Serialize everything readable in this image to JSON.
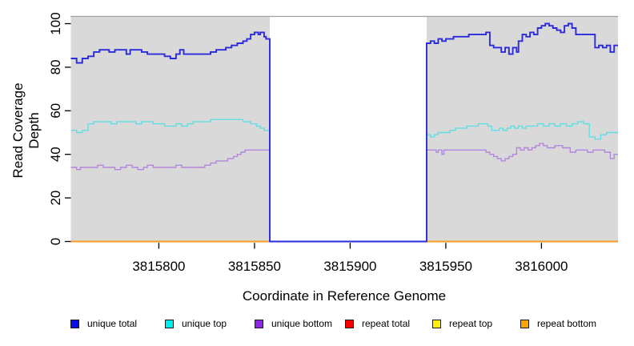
{
  "figure": {
    "x_axis_title": "Coordinate in Reference Genome",
    "y_axis_title": "Read Coverage Depth"
  },
  "chart_data": {
    "type": "line",
    "style": "step-after",
    "title": "",
    "xlabel": "Coordinate in Reference Genome",
    "ylabel": "Read Coverage Depth",
    "xlim": [
      3815754,
      3816040
    ],
    "ylim": [
      0,
      103.5
    ],
    "x_ticks": [
      3815800,
      3815850,
      3815900,
      3815950,
      3816000
    ],
    "y_ticks": [
      0,
      20,
      40,
      60,
      80,
      100
    ],
    "grid": false,
    "plot_bg": "#d9d9d9",
    "plot_border_top": "#a0a0a0",
    "gap_region": {
      "start": 3815858,
      "end": 3815940,
      "fill": "#ffffff",
      "note": "no-data region, all unique series drop to 0"
    },
    "legend_position": "bottom",
    "series": [
      {
        "name": "unique total",
        "color": "#2b2bdb",
        "swatch": "#0b0bf0",
        "z": 6,
        "width": 1.9,
        "points": [
          [
            3815754,
            84
          ],
          [
            3815757,
            82
          ],
          [
            3815760,
            84
          ],
          [
            3815763,
            85
          ],
          [
            3815766,
            87
          ],
          [
            3815769,
            88
          ],
          [
            3815774,
            87
          ],
          [
            3815777,
            88
          ],
          [
            3815783,
            86
          ],
          [
            3815785,
            88
          ],
          [
            3815791,
            87
          ],
          [
            3815794,
            86
          ],
          [
            3815803,
            85
          ],
          [
            3815806,
            84
          ],
          [
            3815809,
            86
          ],
          [
            3815811,
            88
          ],
          [
            3815813,
            86
          ],
          [
            3815824,
            86
          ],
          [
            3815827,
            87
          ],
          [
            3815830,
            88
          ],
          [
            3815835,
            89
          ],
          [
            3815838,
            90
          ],
          [
            3815841,
            91
          ],
          [
            3815844,
            92
          ],
          [
            3815846,
            93
          ],
          [
            3815848,
            95
          ],
          [
            3815850,
            96
          ],
          [
            3815852,
            95
          ],
          [
            3815853,
            96
          ],
          [
            3815855,
            94
          ],
          [
            3815856,
            93
          ],
          [
            3815858,
            0
          ],
          [
            3815940,
            91
          ],
          [
            3815942,
            92
          ],
          [
            3815944,
            91
          ],
          [
            3815946,
            93
          ],
          [
            3815948,
            92
          ],
          [
            3815950,
            93
          ],
          [
            3815954,
            94
          ],
          [
            3815962,
            95
          ],
          [
            3815968,
            95
          ],
          [
            3815971,
            96
          ],
          [
            3815973,
            90
          ],
          [
            3815975,
            89
          ],
          [
            3815979,
            87
          ],
          [
            3815981,
            89
          ],
          [
            3815983,
            86
          ],
          [
            3815985,
            89
          ],
          [
            3815987,
            87
          ],
          [
            3815988,
            92
          ],
          [
            3815990,
            95
          ],
          [
            3815992,
            94
          ],
          [
            3815994,
            96
          ],
          [
            3815996,
            95
          ],
          [
            3815998,
            98
          ],
          [
            3816000,
            99
          ],
          [
            3816002,
            100
          ],
          [
            3816004,
            99
          ],
          [
            3816006,
            98
          ],
          [
            3816008,
            97
          ],
          [
            3816010,
            96
          ],
          [
            3816012,
            99
          ],
          [
            3816014,
            100
          ],
          [
            3816016,
            98
          ],
          [
            3816018,
            95
          ],
          [
            3816022,
            95
          ],
          [
            3816028,
            89
          ],
          [
            3816030,
            90
          ],
          [
            3816032,
            89
          ],
          [
            3816034,
            90
          ],
          [
            3816036,
            87
          ],
          [
            3816038,
            90
          ],
          [
            3816040,
            90
          ]
        ]
      },
      {
        "name": "unique top",
        "color": "#5fdfe4",
        "swatch": "#00eeee",
        "z": 5,
        "width": 1.4,
        "points": [
          [
            3815754,
            51
          ],
          [
            3815757,
            50
          ],
          [
            3815760,
            51
          ],
          [
            3815763,
            54
          ],
          [
            3815766,
            55
          ],
          [
            3815772,
            55
          ],
          [
            3815775,
            54
          ],
          [
            3815778,
            55
          ],
          [
            3815788,
            54
          ],
          [
            3815791,
            55
          ],
          [
            3815797,
            54
          ],
          [
            3815803,
            53
          ],
          [
            3815809,
            54
          ],
          [
            3815812,
            53
          ],
          [
            3815815,
            54
          ],
          [
            3815818,
            55
          ],
          [
            3815827,
            56
          ],
          [
            3815836,
            56
          ],
          [
            3815840,
            56
          ],
          [
            3815844,
            55
          ],
          [
            3815848,
            54
          ],
          [
            3815851,
            53
          ],
          [
            3815853,
            52
          ],
          [
            3815855,
            51
          ],
          [
            3815858,
            0
          ],
          [
            3815940,
            49
          ],
          [
            3815942,
            48
          ],
          [
            3815944,
            49
          ],
          [
            3815946,
            50
          ],
          [
            3815952,
            51
          ],
          [
            3815955,
            52
          ],
          [
            3815961,
            53
          ],
          [
            3815967,
            54
          ],
          [
            3815972,
            53
          ],
          [
            3815974,
            51
          ],
          [
            3815978,
            52
          ],
          [
            3815980,
            51
          ],
          [
            3815982,
            52
          ],
          [
            3815984,
            53
          ],
          [
            3815986,
            52
          ],
          [
            3815988,
            53
          ],
          [
            3815990,
            52
          ],
          [
            3815992,
            53
          ],
          [
            3815998,
            54
          ],
          [
            3816001,
            53
          ],
          [
            3816004,
            54
          ],
          [
            3816007,
            53
          ],
          [
            3816010,
            54
          ],
          [
            3816013,
            53
          ],
          [
            3816016,
            54
          ],
          [
            3816019,
            55
          ],
          [
            3816022,
            54
          ],
          [
            3816025,
            48
          ],
          [
            3816028,
            47
          ],
          [
            3816031,
            49
          ],
          [
            3816034,
            50
          ],
          [
            3816040,
            50
          ]
        ]
      },
      {
        "name": "unique bottom",
        "color": "#b286de",
        "swatch": "#8e25e8",
        "z": 4,
        "width": 1.4,
        "points": [
          [
            3815754,
            34
          ],
          [
            3815757,
            33
          ],
          [
            3815759,
            34
          ],
          [
            3815768,
            35
          ],
          [
            3815771,
            34
          ],
          [
            3815777,
            33
          ],
          [
            3815780,
            34
          ],
          [
            3815783,
            35
          ],
          [
            3815786,
            34
          ],
          [
            3815789,
            33
          ],
          [
            3815792,
            34
          ],
          [
            3815794,
            35
          ],
          [
            3815797,
            34
          ],
          [
            3815800,
            34
          ],
          [
            3815809,
            35
          ],
          [
            3815812,
            34
          ],
          [
            3815824,
            35
          ],
          [
            3815827,
            36
          ],
          [
            3815830,
            37
          ],
          [
            3815833,
            37
          ],
          [
            3815836,
            38
          ],
          [
            3815839,
            39
          ],
          [
            3815841,
            40
          ],
          [
            3815843,
            41
          ],
          [
            3815845,
            42
          ],
          [
            3815858,
            0
          ],
          [
            3815940,
            42
          ],
          [
            3815945,
            41
          ],
          [
            3815946,
            42
          ],
          [
            3815948,
            40
          ],
          [
            3815949,
            42
          ],
          [
            3815968,
            42
          ],
          [
            3815971,
            41
          ],
          [
            3815973,
            40
          ],
          [
            3815975,
            39
          ],
          [
            3815977,
            38
          ],
          [
            3815979,
            37
          ],
          [
            3815981,
            38
          ],
          [
            3815983,
            39
          ],
          [
            3815985,
            40
          ],
          [
            3815987,
            43
          ],
          [
            3815989,
            42
          ],
          [
            3815991,
            43
          ],
          [
            3815993,
            42
          ],
          [
            3815995,
            43
          ],
          [
            3815997,
            44
          ],
          [
            3815999,
            45
          ],
          [
            3816001,
            44
          ],
          [
            3816003,
            43
          ],
          [
            3816007,
            44
          ],
          [
            3816009,
            44
          ],
          [
            3816011,
            43
          ],
          [
            3816015,
            41
          ],
          [
            3816018,
            42
          ],
          [
            3816024,
            41
          ],
          [
            3816027,
            42
          ],
          [
            3816030,
            42
          ],
          [
            3816033,
            41
          ],
          [
            3816036,
            38
          ],
          [
            3816038,
            40
          ],
          [
            3816040,
            40
          ]
        ]
      },
      {
        "name": "repeat total",
        "color": "#e60000",
        "swatch": "#f40000",
        "z": 1,
        "width": 1.4,
        "points": [
          [
            3815754,
            0
          ],
          [
            3816040,
            0
          ]
        ]
      },
      {
        "name": "repeat top",
        "color": "#ffff00",
        "swatch": "#fff200",
        "z": 2,
        "width": 1.4,
        "points": [
          [
            3815754,
            0
          ],
          [
            3816040,
            0
          ]
        ]
      },
      {
        "name": "repeat bottom",
        "color": "#ff9e25",
        "swatch": "#ffa408",
        "z": 3,
        "width": 1.8,
        "points": [
          [
            3815754,
            0
          ],
          [
            3816040,
            0
          ]
        ]
      }
    ]
  },
  "legend": {
    "items": [
      {
        "label": "unique total",
        "color": "#0b0bf0"
      },
      {
        "label": "unique top",
        "color": "#00eeee"
      },
      {
        "label": "unique bottom",
        "color": "#8e25e8"
      },
      {
        "label": "repeat total",
        "color": "#f40000"
      },
      {
        "label": "repeat top",
        "color": "#fff200"
      },
      {
        "label": "repeat bottom",
        "color": "#ffa408"
      }
    ]
  }
}
